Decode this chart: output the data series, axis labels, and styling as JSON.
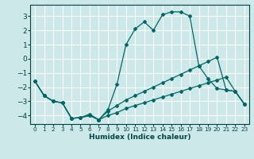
{
  "xlabel": "Humidex (Indice chaleur)",
  "bg_color": "#cce8e8",
  "grid_color": "#ffffff",
  "line_color": "#006666",
  "xlim": [
    -0.5,
    23.5
  ],
  "ylim": [
    -4.6,
    3.8
  ],
  "yticks": [
    -4,
    -3,
    -2,
    -1,
    0,
    1,
    2,
    3
  ],
  "xticks": [
    0,
    1,
    2,
    3,
    4,
    5,
    6,
    7,
    8,
    9,
    10,
    11,
    12,
    13,
    14,
    15,
    16,
    17,
    18,
    19,
    20,
    21,
    22,
    23
  ],
  "line_bottom_x": [
    0,
    1,
    2,
    3,
    4,
    5,
    6,
    7,
    8,
    9,
    10,
    11,
    12,
    13,
    14,
    15,
    16,
    17,
    18,
    19,
    20,
    21,
    22,
    23
  ],
  "line_bottom_y": [
    -1.6,
    -2.6,
    -3.0,
    -3.1,
    -4.2,
    -4.15,
    -4.0,
    -4.3,
    -4.0,
    -3.8,
    -3.5,
    -3.3,
    -3.1,
    -2.9,
    -2.7,
    -2.5,
    -2.3,
    -2.1,
    -1.9,
    -1.7,
    -1.5,
    -1.3,
    -2.3,
    -3.2
  ],
  "line_mid_x": [
    0,
    1,
    2,
    3,
    4,
    5,
    6,
    7,
    8,
    9,
    10,
    11,
    12,
    13,
    14,
    15,
    16,
    17,
    18,
    19,
    20,
    21,
    22,
    23
  ],
  "line_mid_y": [
    -1.6,
    -2.6,
    -3.0,
    -3.1,
    -4.2,
    -4.15,
    -4.0,
    -4.3,
    -3.7,
    -3.3,
    -2.9,
    -2.6,
    -2.3,
    -2.0,
    -1.7,
    -1.4,
    -1.1,
    -0.8,
    -0.5,
    -0.2,
    0.1,
    -2.2,
    -2.3,
    -3.2
  ],
  "line_top_x": [
    0,
    1,
    2,
    3,
    4,
    5,
    6,
    7,
    8,
    9,
    10,
    11,
    12,
    13,
    14,
    15,
    16,
    17,
    18,
    19,
    20,
    21,
    22,
    23
  ],
  "line_top_y": [
    -1.6,
    -2.6,
    -3.0,
    -3.1,
    -4.2,
    -4.15,
    -3.9,
    -4.3,
    -3.6,
    -1.8,
    1.0,
    2.1,
    2.6,
    2.0,
    3.1,
    3.3,
    3.3,
    3.0,
    -0.5,
    -1.4,
    -2.1,
    -2.2,
    -2.3,
    -3.2
  ]
}
